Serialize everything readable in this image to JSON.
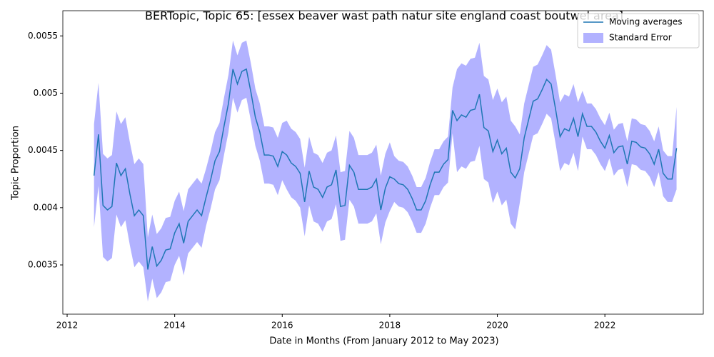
{
  "chart_data": {
    "type": "line",
    "title": "BERTopic, Topic 65: [essex beaver wast path natur site england coast boutwel area]",
    "x_label": "Date in Months (From January 2012 to May 2023)",
    "y_label": "Topic Proportion",
    "x": [
      2012.5,
      2012.583,
      2012.667,
      2012.75,
      2012.833,
      2012.917,
      2013.0,
      2013.083,
      2013.167,
      2013.25,
      2013.333,
      2013.417,
      2013.5,
      2013.583,
      2013.667,
      2013.75,
      2013.833,
      2013.917,
      2014.0,
      2014.083,
      2014.167,
      2014.25,
      2014.333,
      2014.417,
      2014.5,
      2014.583,
      2014.667,
      2014.75,
      2014.833,
      2014.917,
      2015.0,
      2015.083,
      2015.167,
      2015.25,
      2015.333,
      2015.417,
      2015.5,
      2015.583,
      2015.667,
      2015.75,
      2015.833,
      2015.917,
      2016.0,
      2016.083,
      2016.167,
      2016.25,
      2016.333,
      2016.417,
      2016.5,
      2016.583,
      2016.667,
      2016.75,
      2016.833,
      2016.917,
      2017.0,
      2017.083,
      2017.167,
      2017.25,
      2017.333,
      2017.417,
      2017.5,
      2017.583,
      2017.667,
      2017.75,
      2017.833,
      2017.917,
      2018.0,
      2018.083,
      2018.167,
      2018.25,
      2018.333,
      2018.417,
      2018.5,
      2018.583,
      2018.667,
      2018.75,
      2018.833,
      2018.917,
      2019.0,
      2019.083,
      2019.167,
      2019.25,
      2019.333,
      2019.417,
      2019.5,
      2019.583,
      2019.667,
      2019.75,
      2019.833,
      2019.917,
      2020.0,
      2020.083,
      2020.167,
      2020.25,
      2020.333,
      2020.417,
      2020.5,
      2020.583,
      2020.667,
      2020.75,
      2020.833,
      2020.917,
      2021.0,
      2021.083,
      2021.167,
      2021.25,
      2021.333,
      2021.417,
      2021.5,
      2021.583,
      2021.667,
      2021.75,
      2021.833,
      2021.917,
      2022.0,
      2022.083,
      2022.167,
      2022.25,
      2022.333,
      2022.417,
      2022.5,
      2022.583,
      2022.667,
      2022.75,
      2022.833,
      2022.917,
      2023.0,
      2023.083,
      2023.167,
      2023.25,
      2023.333
    ],
    "series": [
      {
        "name": "Moving averages",
        "color": "#1f77b4",
        "values": [
          0.00428,
          0.00464,
          0.00402,
          0.00398,
          0.00401,
          0.00439,
          0.00428,
          0.00434,
          0.00412,
          0.00393,
          0.00398,
          0.00393,
          0.00346,
          0.00366,
          0.00349,
          0.00354,
          0.00363,
          0.00364,
          0.00378,
          0.00386,
          0.00369,
          0.00388,
          0.00393,
          0.00398,
          0.00393,
          0.00409,
          0.00424,
          0.00441,
          0.00449,
          0.00471,
          0.00491,
          0.00521,
          0.00508,
          0.00519,
          0.00521,
          0.00501,
          0.00479,
          0.00466,
          0.00446,
          0.00446,
          0.00445,
          0.00436,
          0.00449,
          0.00446,
          0.00439,
          0.00436,
          0.0043,
          0.00405,
          0.00432,
          0.00418,
          0.00416,
          0.00409,
          0.00418,
          0.0042,
          0.00433,
          0.00401,
          0.00402,
          0.00437,
          0.00431,
          0.00416,
          0.00416,
          0.00416,
          0.00418,
          0.00425,
          0.00398,
          0.00417,
          0.00427,
          0.00425,
          0.00421,
          0.0042,
          0.00416,
          0.00408,
          0.00398,
          0.00398,
          0.00406,
          0.0042,
          0.00431,
          0.00431,
          0.00438,
          0.00442,
          0.00485,
          0.00476,
          0.00481,
          0.00479,
          0.00485,
          0.00486,
          0.00499,
          0.0047,
          0.00467,
          0.00449,
          0.00459,
          0.00447,
          0.00452,
          0.00431,
          0.00426,
          0.00434,
          0.00461,
          0.00477,
          0.00493,
          0.00495,
          0.00503,
          0.00512,
          0.00508,
          0.00486,
          0.00462,
          0.00469,
          0.00467,
          0.00478,
          0.00462,
          0.00482,
          0.00471,
          0.00471,
          0.00466,
          0.00458,
          0.00452,
          0.00463,
          0.00448,
          0.00453,
          0.00454,
          0.00438,
          0.00458,
          0.00457,
          0.00453,
          0.00452,
          0.00447,
          0.00438,
          0.00451,
          0.0043,
          0.00425,
          0.00425,
          0.00452
        ]
      },
      {
        "name": "Standard Error",
        "color": "#0000ff",
        "values": [
          0.00045,
          0.00045,
          0.00045,
          0.00045,
          0.00045,
          0.00045,
          0.00045,
          0.00045,
          0.00045,
          0.00045,
          0.00045,
          0.00045,
          0.00028,
          0.00028,
          0.00028,
          0.00028,
          0.00028,
          0.00028,
          0.00028,
          0.00028,
          0.00028,
          0.00028,
          0.00028,
          0.00028,
          0.00028,
          0.00025,
          0.00025,
          0.00025,
          0.00025,
          0.00025,
          0.00025,
          0.00025,
          0.00025,
          0.00025,
          0.00025,
          0.00025,
          0.00025,
          0.00025,
          0.00025,
          0.00025,
          0.00025,
          0.00025,
          0.00025,
          0.0003,
          0.0003,
          0.0003,
          0.0003,
          0.0003,
          0.0003,
          0.0003,
          0.0003,
          0.0003,
          0.0003,
          0.0003,
          0.0003,
          0.0003,
          0.0003,
          0.0003,
          0.0003,
          0.0003,
          0.0003,
          0.0003,
          0.0003,
          0.0003,
          0.0003,
          0.0003,
          0.0003,
          0.0002,
          0.0002,
          0.0002,
          0.0002,
          0.0002,
          0.0002,
          0.0002,
          0.0002,
          0.0002,
          0.0002,
          0.0002,
          0.0002,
          0.0002,
          0.0002,
          0.00045,
          0.00045,
          0.00045,
          0.00045,
          0.00045,
          0.00045,
          0.00045,
          0.00045,
          0.00045,
          0.00045,
          0.00045,
          0.00045,
          0.00045,
          0.00045,
          0.0003,
          0.0003,
          0.0003,
          0.0003,
          0.0003,
          0.0003,
          0.0003,
          0.0003,
          0.0003,
          0.0003,
          0.0003,
          0.0003,
          0.0003,
          0.0003,
          0.0002,
          0.0002,
          0.0002,
          0.0002,
          0.0002,
          0.0002,
          0.0002,
          0.0002,
          0.0002,
          0.0002,
          0.0002,
          0.0002,
          0.0002,
          0.0002,
          0.0002,
          0.0002,
          0.0002,
          0.0002,
          0.0002,
          0.0002,
          0.0002,
          0.00036
        ]
      }
    ],
    "xlim": [
      2011.92,
      2023.83
    ],
    "xticks": [
      2012,
      2014,
      2016,
      2018,
      2020,
      2022
    ],
    "ylim": [
      0.00307,
      0.00572
    ],
    "yticks": [
      0.0035,
      0.004,
      0.0045,
      0.005,
      0.0055
    ],
    "legend": "upper right"
  }
}
